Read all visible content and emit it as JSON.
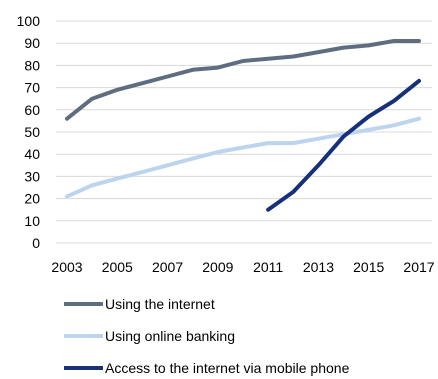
{
  "chart_data": {
    "type": "line",
    "title": "",
    "xlabel": "",
    "ylabel": "",
    "ylim": [
      0,
      100
    ],
    "yticks": [
      0,
      10,
      20,
      30,
      40,
      50,
      60,
      70,
      80,
      90,
      100
    ],
    "x": [
      2003,
      2004,
      2005,
      2006,
      2007,
      2008,
      2009,
      2010,
      2011,
      2012,
      2013,
      2014,
      2015,
      2016,
      2017
    ],
    "xticks": [
      2003,
      2005,
      2007,
      2009,
      2011,
      2013,
      2015,
      2017
    ],
    "grid": true,
    "legend_position": "bottom",
    "series": [
      {
        "name": "Using the internet",
        "color": "#5e6e80",
        "values": [
          56,
          65,
          69,
          72,
          75,
          78,
          79,
          82,
          83,
          84,
          86,
          88,
          89,
          91,
          91
        ]
      },
      {
        "name": "Using online banking",
        "color": "#bcd4ee",
        "values": [
          21,
          26,
          29,
          32,
          35,
          38,
          41,
          43,
          45,
          45,
          47,
          49,
          51,
          53,
          56
        ]
      },
      {
        "name": "Access to the internet via mobile phone",
        "color": "#17307a",
        "values": [
          null,
          null,
          null,
          null,
          null,
          null,
          null,
          null,
          15,
          23,
          35,
          48,
          57,
          64,
          73
        ]
      }
    ]
  }
}
